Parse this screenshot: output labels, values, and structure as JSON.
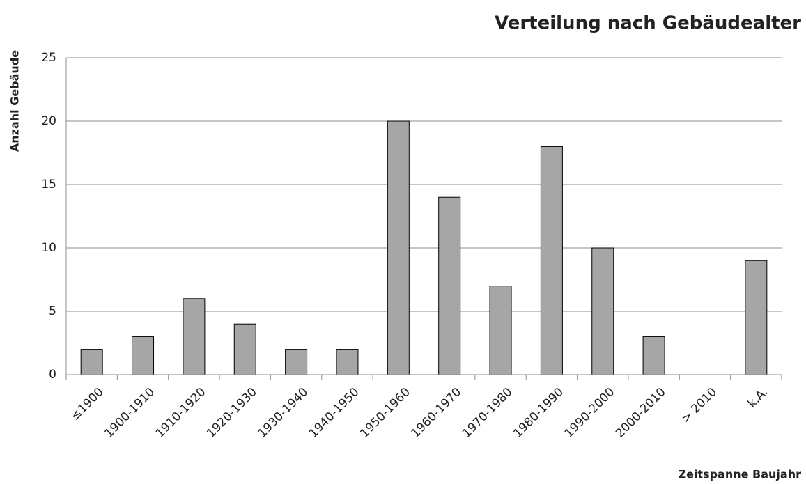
{
  "chart_data": {
    "type": "bar",
    "title": "Verteilung nach Gebäudealter",
    "y_label": "Anzahl Gebäude",
    "x_label": "Zeitspanne Baujahr",
    "categories": [
      "≤1900",
      "1900-1910",
      "1910-1920",
      "1920-1930",
      "1930-1940",
      "1940-1950",
      "1950-1960",
      "1960-1970",
      "1970-1980",
      "1980-1990",
      "1990-2000",
      "2000-2010",
      "> 2010",
      "k.A."
    ],
    "values": [
      2,
      3,
      6,
      4,
      2,
      2,
      20,
      14,
      7,
      18,
      10,
      3,
      0,
      9
    ],
    "color": "#a6a6a6",
    "ylim": [
      0,
      25
    ],
    "yticks": [
      0,
      5,
      10,
      15,
      20,
      25
    ],
    "grid": true
  }
}
